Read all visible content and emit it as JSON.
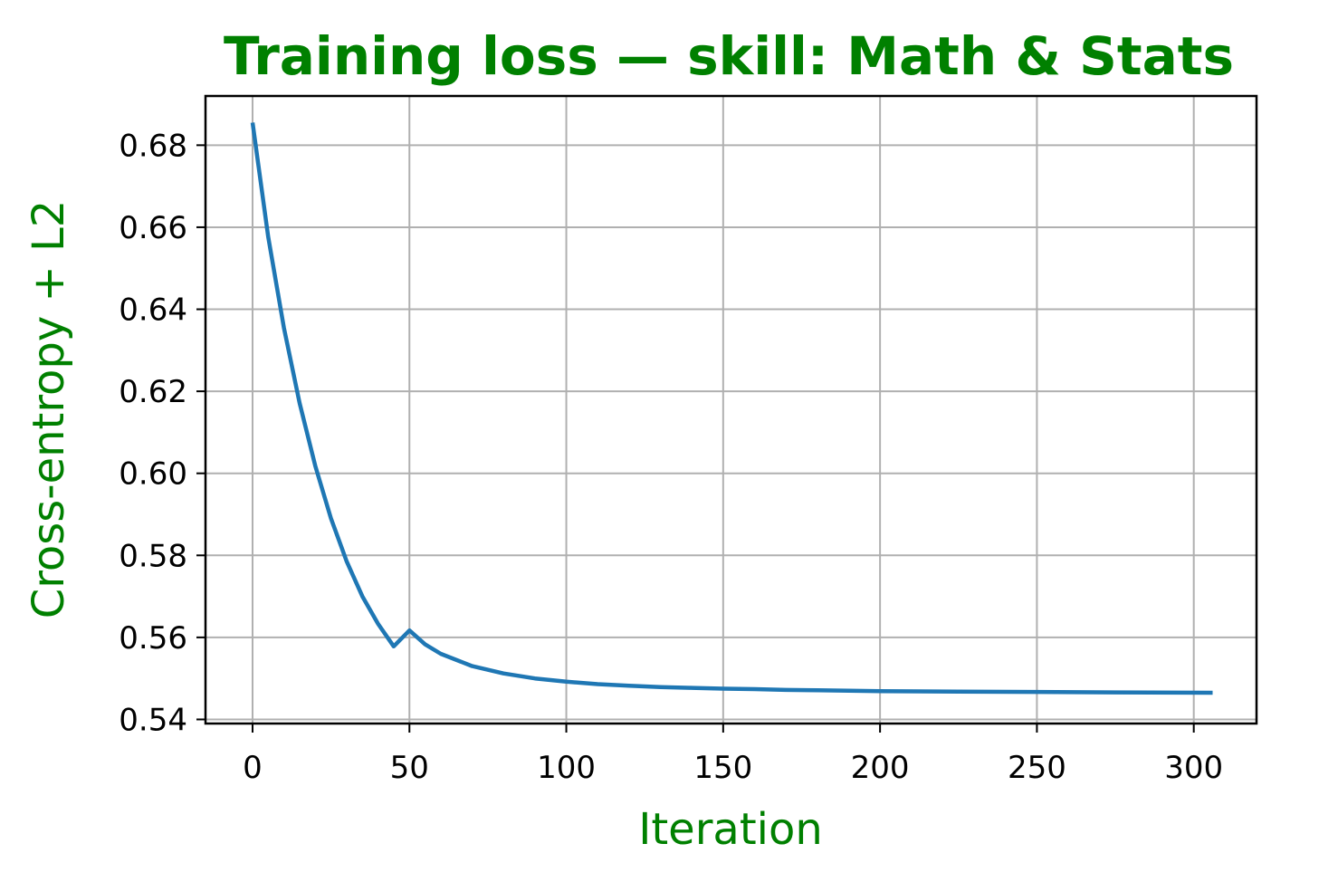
{
  "chart_data": {
    "type": "line",
    "title": "Training loss — skill: Math & Stats",
    "xlabel": "Iteration",
    "ylabel": "Cross-entropy + L2",
    "xlim": [
      -15,
      320
    ],
    "ylim": [
      0.539,
      0.692
    ],
    "xticks": [
      0,
      50,
      100,
      150,
      200,
      250,
      300
    ],
    "xtick_labels": [
      "0",
      "50",
      "100",
      "150",
      "200",
      "250",
      "300"
    ],
    "yticks": [
      0.54,
      0.56,
      0.58,
      0.6,
      0.62,
      0.64,
      0.66,
      0.68
    ],
    "ytick_labels": [
      "0.54",
      "0.56",
      "0.58",
      "0.60",
      "0.62",
      "0.64",
      "0.66",
      "0.68"
    ],
    "grid": true,
    "series": [
      {
        "color": "#1f77b4",
        "x": [
          0,
          5,
          10,
          15,
          20,
          25,
          30,
          35,
          40,
          45,
          50,
          55,
          60,
          70,
          80,
          90,
          100,
          110,
          120,
          130,
          140,
          150,
          160,
          170,
          180,
          190,
          200,
          225,
          250,
          275,
          306
        ],
        "y": [
          0.6855,
          0.6576,
          0.6355,
          0.6171,
          0.6018,
          0.589,
          0.5785,
          0.57,
          0.5633,
          0.5578,
          0.5617,
          0.5583,
          0.556,
          0.553,
          0.5512,
          0.55,
          0.5492,
          0.5486,
          0.5482,
          0.5479,
          0.5477,
          0.5475,
          0.5474,
          0.5472,
          0.5471,
          0.547,
          0.5469,
          0.5468,
          0.5467,
          0.5466,
          0.5465
        ]
      }
    ]
  },
  "colors": {
    "title": "#008000",
    "axis_labels": "#008000",
    "line": "#1f77b4",
    "grid": "#b0b0b0",
    "axes": "#000000"
  }
}
